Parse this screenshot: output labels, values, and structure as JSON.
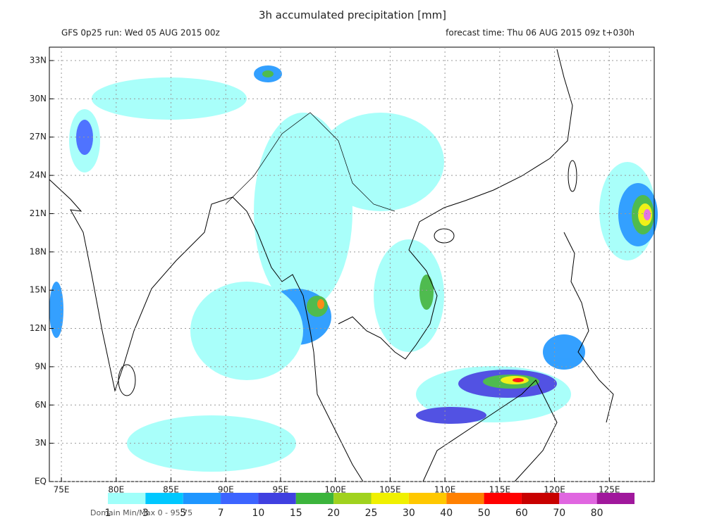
{
  "chart_data": {
    "type": "map",
    "title": "3h accumulated precipitation [mm]",
    "subtitle_left": "GFS 0p25 run: Wed 05 AUG 2015 00z",
    "subtitle_right": "forecast time: Thu 06 AUG 2015 09z  t+030h",
    "footer": "Domain Min/Max 0 - 95.75",
    "xlim": [
      73.9,
      129.1
    ],
    "ylim": [
      0,
      34.05
    ],
    "xticks": [
      {
        "value": 75,
        "label": "75E"
      },
      {
        "value": 80,
        "label": "80E"
      },
      {
        "value": 85,
        "label": "85E"
      },
      {
        "value": 90,
        "label": "90E"
      },
      {
        "value": 95,
        "label": "95E"
      },
      {
        "value": 100,
        "label": "100E"
      },
      {
        "value": 105,
        "label": "105E"
      },
      {
        "value": 110,
        "label": "110E"
      },
      {
        "value": 115,
        "label": "115E"
      },
      {
        "value": 120,
        "label": "120E"
      },
      {
        "value": 125,
        "label": "125E"
      }
    ],
    "yticks": [
      {
        "value": 0,
        "label": "EQ"
      },
      {
        "value": 3,
        "label": "3N"
      },
      {
        "value": 6,
        "label": "6N"
      },
      {
        "value": 9,
        "label": "9N"
      },
      {
        "value": 12,
        "label": "12N"
      },
      {
        "value": 15,
        "label": "15N"
      },
      {
        "value": 18,
        "label": "18N"
      },
      {
        "value": 21,
        "label": "21N"
      },
      {
        "value": 24,
        "label": "24N"
      },
      {
        "value": 27,
        "label": "27N"
      },
      {
        "value": 30,
        "label": "30N"
      },
      {
        "value": 33,
        "label": "33N"
      }
    ],
    "grid": true,
    "colorbar": {
      "levels": [
        1,
        3,
        5,
        7,
        10,
        15,
        20,
        25,
        30,
        40,
        50,
        60,
        70,
        80
      ],
      "colors": [
        "#a0fffa",
        "#00c8ff",
        "#1e96ff",
        "#3c64ff",
        "#4040e0",
        "#3cb43c",
        "#a0d21e",
        "#f0f000",
        "#ffc800",
        "#ff8000",
        "#ff0000",
        "#c80000",
        "#e066e0",
        "#a0189c"
      ]
    }
  }
}
